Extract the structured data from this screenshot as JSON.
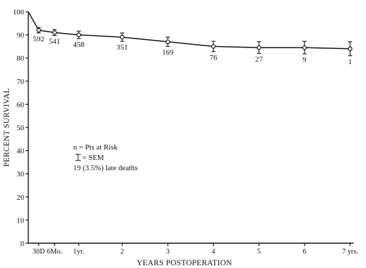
{
  "chart_data": {
    "type": "line",
    "xlabel": "YEARS POSTOPERATION",
    "ylabel": "PERCENT SURVIVAL",
    "ylim": [
      0,
      100
    ],
    "yticks": [
      0,
      10,
      20,
      30,
      40,
      50,
      60,
      70,
      80,
      90,
      100
    ],
    "x_tick_labels": [
      "30D",
      "6Mo.",
      "1yr.",
      "2",
      "3",
      "4",
      "5",
      "6",
      "7 yrs."
    ],
    "x_tick_years": [
      0.082,
      0.5,
      1,
      2,
      3,
      4,
      5,
      6,
      7
    ],
    "series": [
      {
        "x_years": [
          0,
          0.082,
          0.5,
          1,
          2,
          3,
          4,
          5,
          6,
          7
        ],
        "survival": [
          100,
          92,
          91,
          90,
          89,
          87,
          85,
          84.5,
          84.5,
          84
        ],
        "sem": [
          0,
          1.2,
          1.3,
          1.6,
          1.8,
          2.0,
          2.2,
          2.5,
          2.7,
          3.0
        ],
        "at_risk": [
          null,
          592,
          541,
          458,
          351,
          169,
          76,
          27,
          9,
          1
        ]
      }
    ],
    "legend": {
      "n_line": "n = Pts at Risk",
      "sem_line": "= SEM",
      "deaths_line": "19 (3.5%) late deaths"
    },
    "grid": false
  }
}
